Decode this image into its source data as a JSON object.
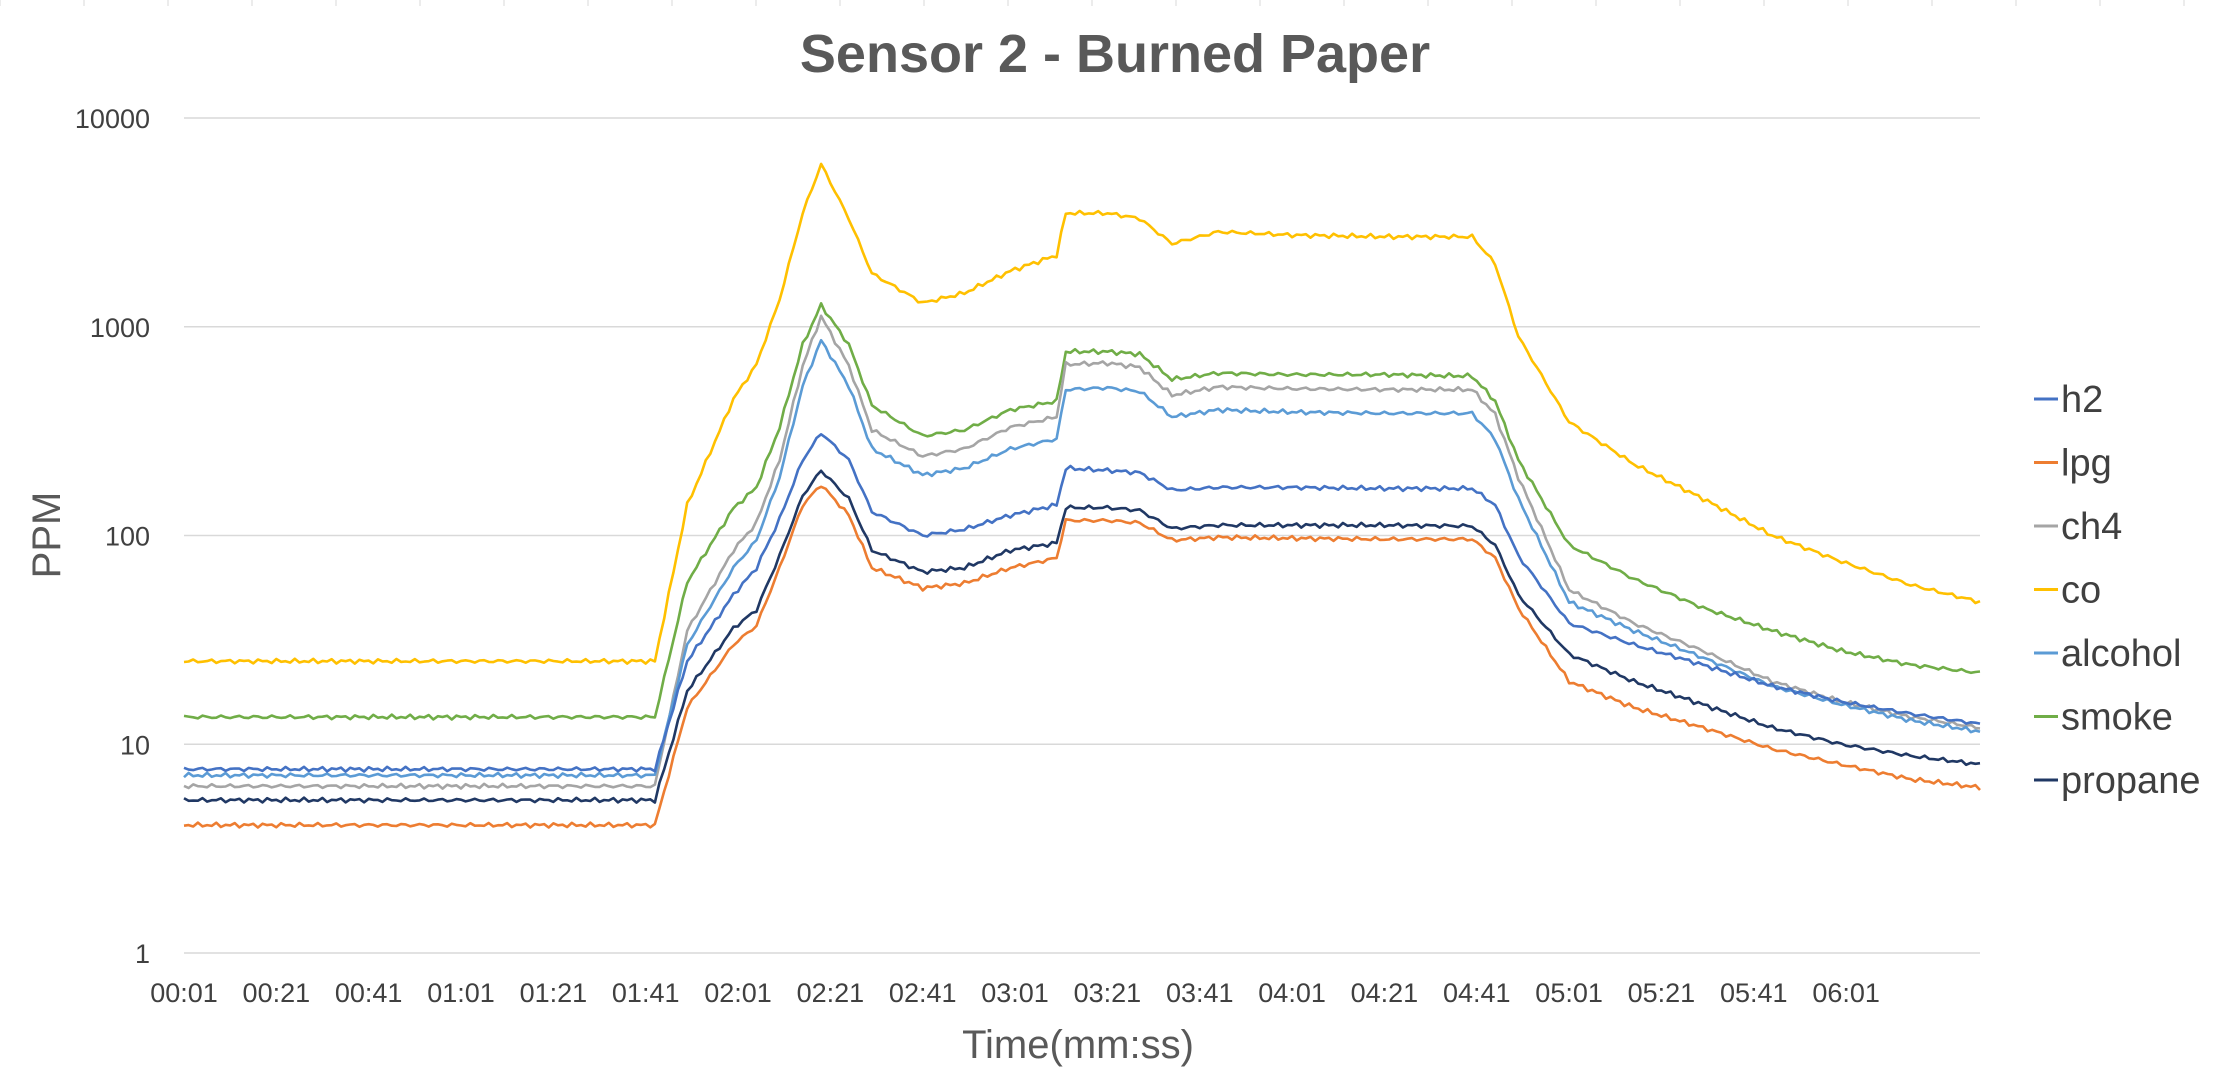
{
  "chart_data": {
    "type": "line",
    "title": "Sensor 2 - Burned Paper",
    "xlabel": "Time(mm:ss)",
    "ylabel": "PPM",
    "yscale": "log",
    "ylim": [
      1,
      10000
    ],
    "yticks": [
      "1",
      "10",
      "100",
      "1000",
      "10000"
    ],
    "xlim": [
      "00:01",
      "06:30"
    ],
    "xticks": [
      "00:01",
      "00:21",
      "00:41",
      "01:01",
      "01:21",
      "01:41",
      "02:01",
      "02:21",
      "02:41",
      "03:01",
      "03:21",
      "03:41",
      "04:01",
      "04:21",
      "04:41",
      "05:01",
      "05:21",
      "05:41",
      "06:01"
    ],
    "grid": "horizontal",
    "legend_position": "right",
    "x": [
      "00:01",
      "01:43",
      "01:50",
      "02:00",
      "02:05",
      "02:10",
      "02:15",
      "02:19",
      "02:25",
      "02:30",
      "02:41",
      "02:50",
      "03:00",
      "03:10",
      "03:12",
      "03:21",
      "03:28",
      "03:35",
      "03:45",
      "04:01",
      "04:21",
      "04:40",
      "04:45",
      "04:50",
      "05:01",
      "05:15",
      "05:30",
      "05:45",
      "06:00",
      "06:15",
      "06:30"
    ],
    "series": [
      {
        "name": "h2",
        "color": "#4472C4",
        "values": [
          7.6,
          7.6,
          25,
          52,
          70,
          120,
          230,
          310,
          230,
          130,
          100,
          107,
          125,
          140,
          210,
          205,
          200,
          165,
          170,
          170,
          168,
          168,
          140,
          80,
          38,
          30,
          24,
          19,
          16,
          14,
          12.5
        ]
      },
      {
        "name": "lpg",
        "color": "#ED7D31",
        "values": [
          4.1,
          4.1,
          15,
          30,
          37,
          70,
          140,
          175,
          125,
          70,
          56,
          59,
          70,
          78,
          118,
          118,
          115,
          95,
          98,
          97,
          96,
          96,
          78,
          45,
          20,
          15,
          12,
          9.5,
          8,
          6.8,
          6.2
        ]
      },
      {
        "name": "ch4",
        "color": "#A5A5A5",
        "values": [
          6.3,
          6.3,
          35,
          85,
          115,
          230,
          650,
          1120,
          650,
          320,
          240,
          260,
          330,
          370,
          660,
          670,
          640,
          470,
          515,
          505,
          500,
          500,
          380,
          190,
          55,
          38,
          28,
          20,
          16,
          13.5,
          12
        ]
      },
      {
        "name": "co",
        "color": "#FFC000",
        "values": [
          25,
          25,
          140,
          450,
          660,
          1350,
          3500,
          6000,
          3300,
          1800,
          1300,
          1450,
          1850,
          2200,
          3500,
          3500,
          3300,
          2500,
          2850,
          2750,
          2700,
          2700,
          2000,
          900,
          350,
          220,
          150,
          100,
          75,
          58,
          48
        ]
      },
      {
        "name": "alcohol",
        "color": "#5B9BD5",
        "values": [
          7.1,
          7.1,
          30,
          70,
          95,
          190,
          520,
          860,
          520,
          260,
          195,
          210,
          260,
          290,
          500,
          510,
          490,
          370,
          400,
          390,
          385,
          385,
          290,
          150,
          48,
          35,
          26,
          19,
          15.5,
          13,
          11.5
        ]
      },
      {
        "name": "smoke",
        "color": "#70AD47",
        "values": [
          13.5,
          13.5,
          60,
          135,
          170,
          330,
          820,
          1270,
          820,
          420,
          300,
          320,
          400,
          440,
          760,
          760,
          740,
          560,
          600,
          590,
          590,
          580,
          440,
          230,
          90,
          62,
          45,
          35,
          28,
          24,
          22
        ]
      },
      {
        "name": "propane",
        "color": "#203864",
        "values": [
          5.4,
          5.4,
          18,
          36,
          44,
          80,
          155,
          205,
          150,
          85,
          67,
          70,
          85,
          92,
          136,
          136,
          132,
          108,
          112,
          112,
          112,
          111,
          90,
          52,
          27,
          20,
          15.5,
          12,
          10,
          8.8,
          8
        ]
      }
    ]
  }
}
